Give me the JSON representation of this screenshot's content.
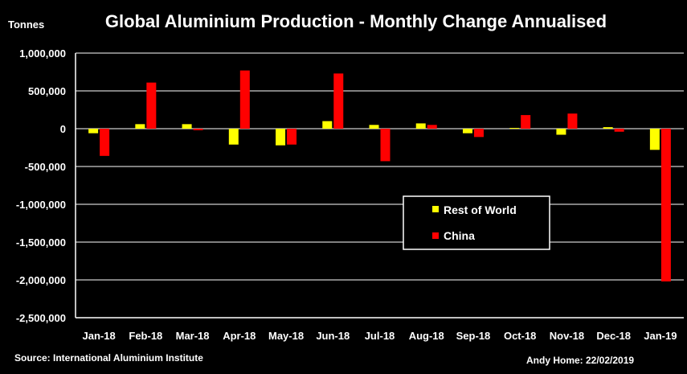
{
  "chart_data": {
    "type": "bar",
    "title": "Global Aluminium Production - Monthly Change Annualised",
    "ylabel": "Tonnes",
    "xlabel": "",
    "ylim": [
      -2500000,
      1000000
    ],
    "yticks": [
      1000000,
      500000,
      0,
      -500000,
      -1000000,
      -1500000,
      -2000000,
      -2500000
    ],
    "ytick_labels": [
      "1,000,000",
      "500,000",
      "0",
      "-500,000",
      "-1,000,000",
      "-1,500,000",
      "-2,000,000",
      "-2,500,000"
    ],
    "grid": true,
    "legend_position": "center-right",
    "categories": [
      "Jan-18",
      "Feb-18",
      "Mar-18",
      "Apr-18",
      "May-18",
      "Jun-18",
      "Jul-18",
      "Aug-18",
      "Sep-18",
      "Oct-18",
      "Nov-18",
      "Dec-18",
      "Jan-19"
    ],
    "series": [
      {
        "name": "Rest of World",
        "color": "#ffff00",
        "values": [
          -60000,
          60000,
          60000,
          -210000,
          -220000,
          100000,
          50000,
          70000,
          -60000,
          10000,
          -80000,
          20000,
          -280000
        ]
      },
      {
        "name": "China",
        "color": "#ff0000",
        "values": [
          -360000,
          610000,
          -20000,
          770000,
          -210000,
          730000,
          -430000,
          50000,
          -110000,
          180000,
          200000,
          -40000,
          -2020000
        ]
      }
    ]
  },
  "footer": {
    "source": "Source: International Aluminium Institute",
    "credit": "Andy Home: 22/02/2019"
  }
}
